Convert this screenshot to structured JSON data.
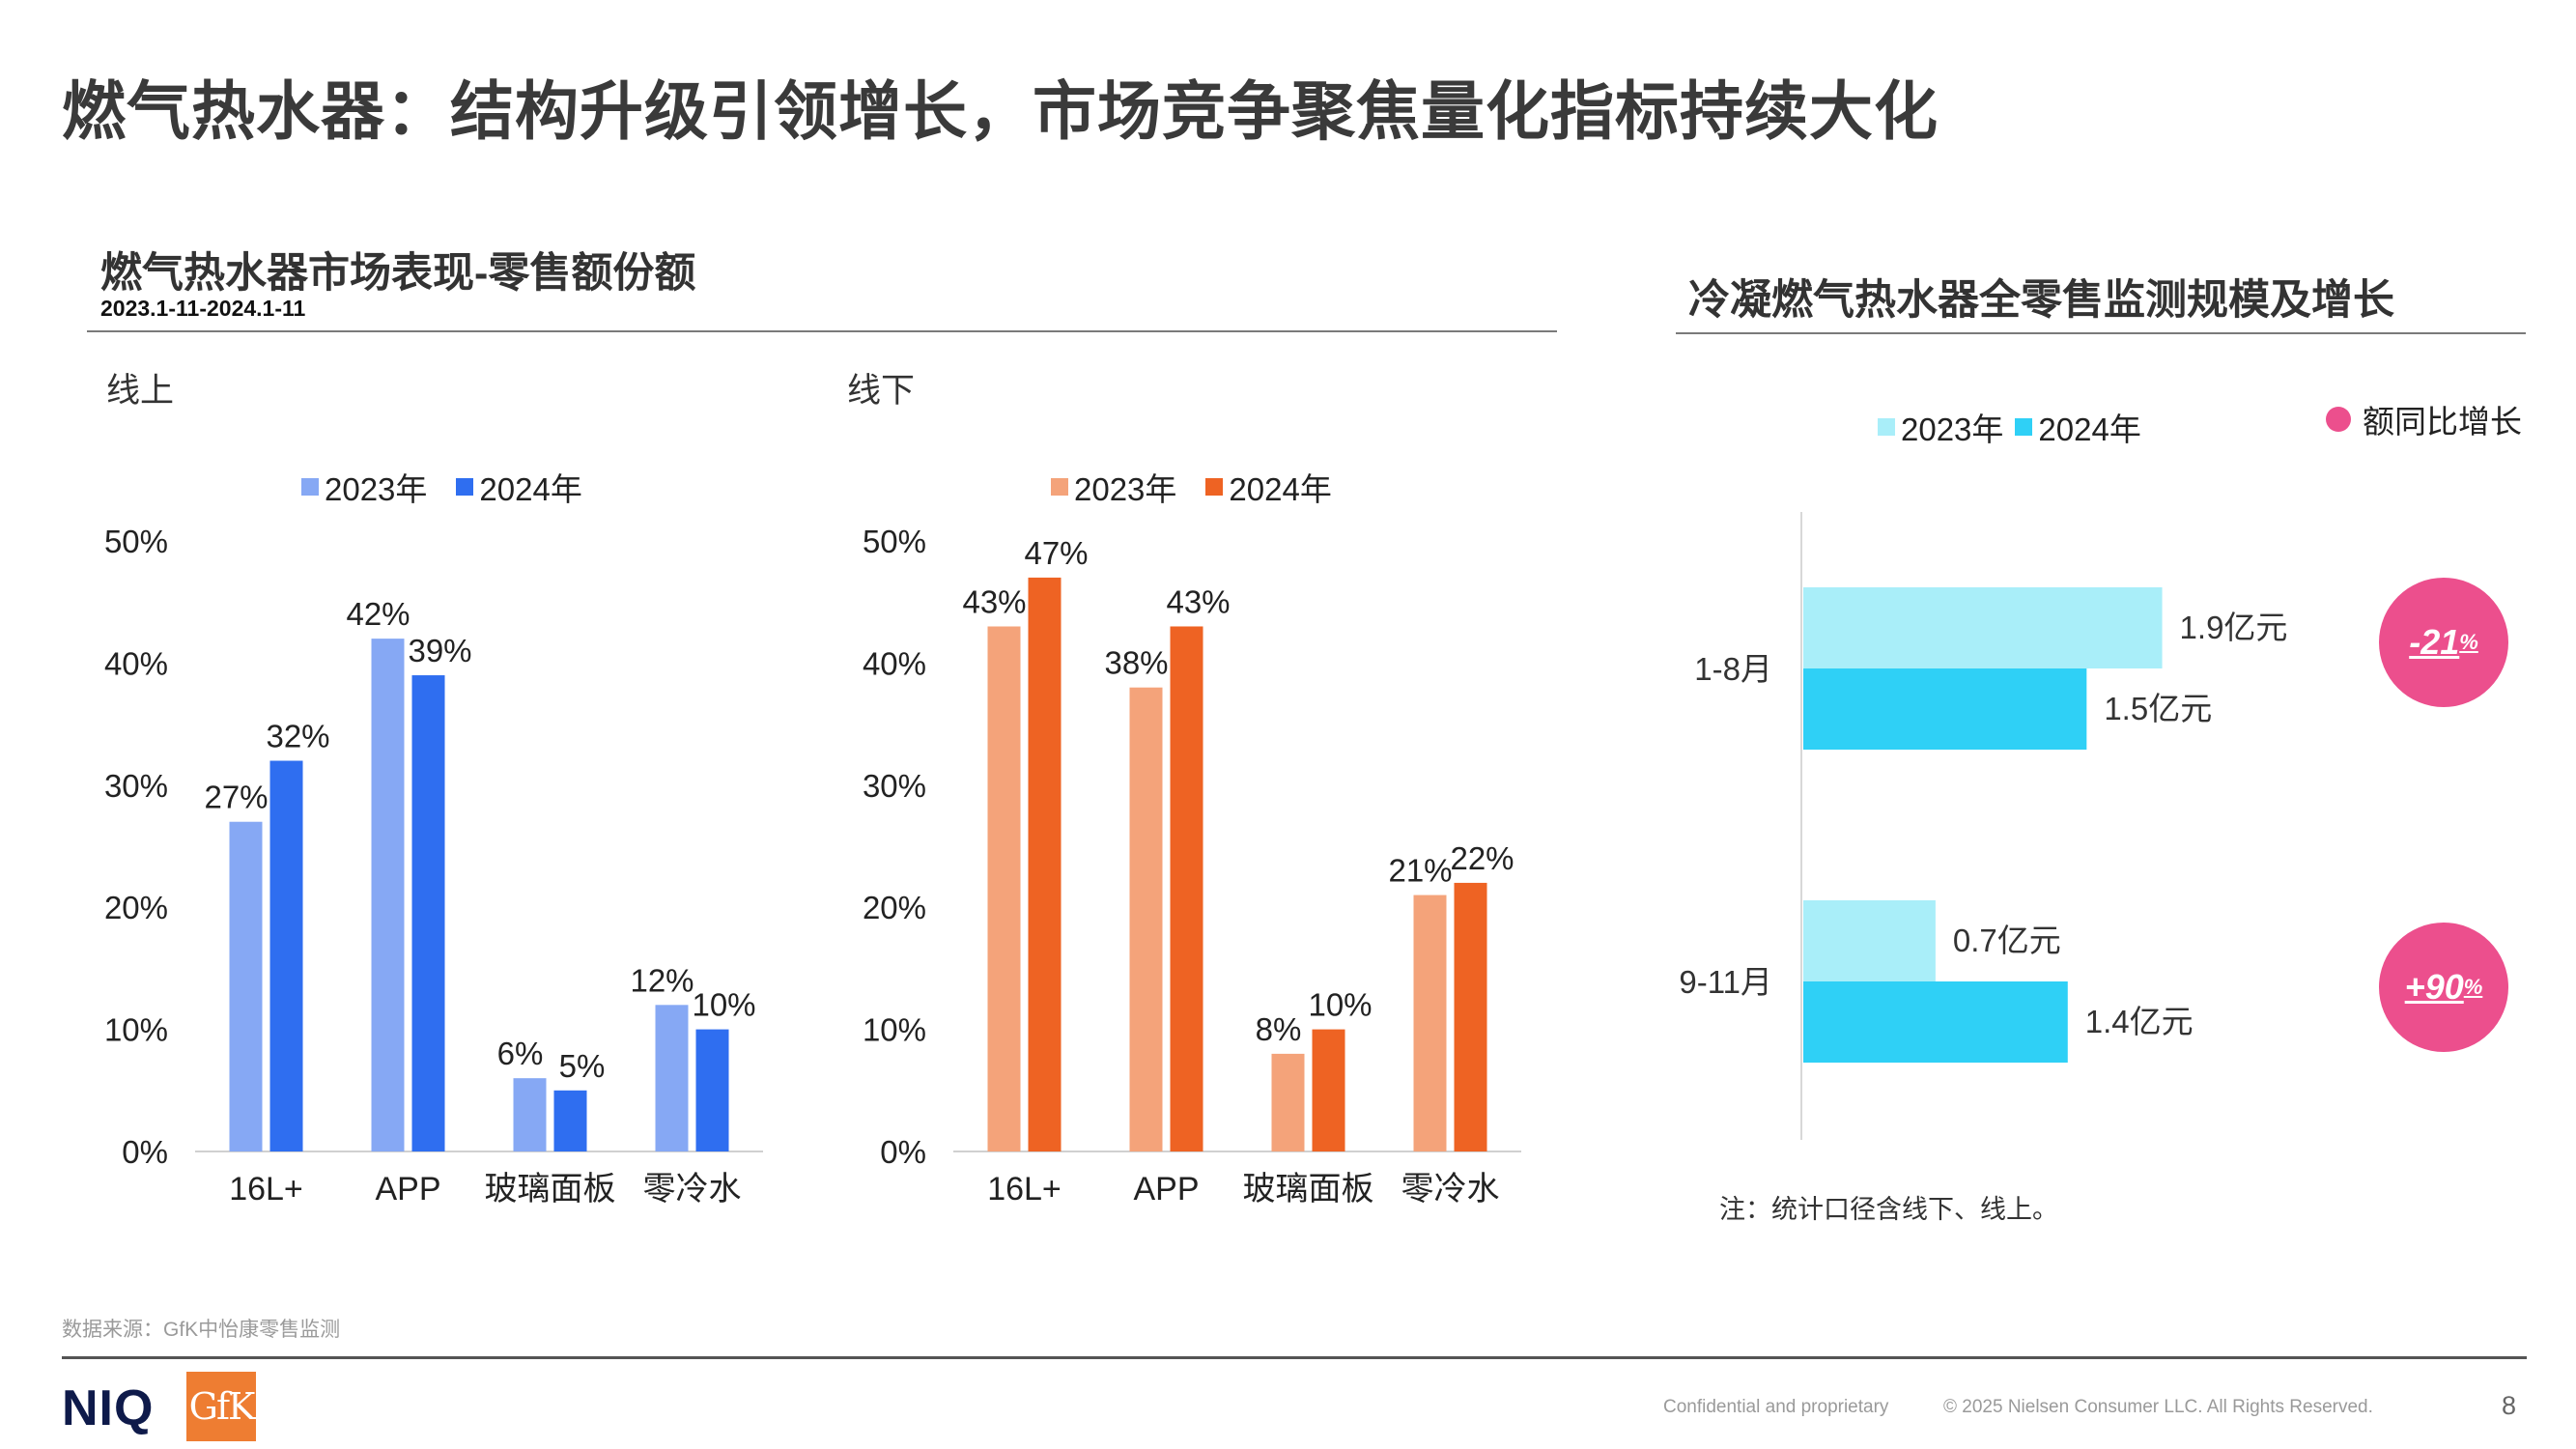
{
  "page": {
    "title": "燃气热水器：结构升级引领增长，市场竞争聚焦量化指标持续大化",
    "source": "数据来源：GfK中怡康零售监测",
    "footer_confidential": "Confidential and proprietary",
    "footer_copyright": "© 2025 Nielsen Consumer LLC. All Rights Reserved.",
    "page_number": "8",
    "logo_niq": "NIQ",
    "logo_gfk": "GfK"
  },
  "left_section": {
    "title": "燃气热水器市场表现-零售额份额",
    "subtitle": "2023.1-11-2024.1-11",
    "online_label": "线上",
    "offline_label": "线下"
  },
  "right_section": {
    "title": "冷凝燃气热水器全零售监测规模及增长",
    "growth_legend": "额同比增长",
    "note": "注：统计口径含线下、线上。",
    "growth_badges": [
      {
        "value": "-21",
        "unit": "%"
      },
      {
        "value": "+90",
        "unit": "%"
      }
    ]
  },
  "colors": {
    "online_2023": "#86a8f4",
    "online_2024": "#2f6ef0",
    "offline_2023": "#f4a37a",
    "offline_2024": "#ee6323",
    "condensing_2023": "#a9eef9",
    "condensing_2024": "#2fd0f6",
    "growth": "#ec4f8d"
  },
  "chart_data": [
    {
      "type": "bar",
      "title": "线上",
      "categories": [
        "16L+",
        "APP",
        "玻璃面板",
        "零冷水"
      ],
      "series": [
        {
          "name": "2023年",
          "values": [
            27,
            42,
            6,
            12
          ],
          "labels": [
            "27%",
            "42%",
            "6%",
            "12%"
          ]
        },
        {
          "name": "2024年",
          "values": [
            32,
            39,
            5,
            10
          ],
          "labels": [
            "32%",
            "39%",
            "5%",
            "10%"
          ]
        }
      ],
      "yticks": [
        "0%",
        "10%",
        "20%",
        "30%",
        "40%",
        "50%"
      ],
      "ylim": [
        0,
        50
      ],
      "legend": "top"
    },
    {
      "type": "bar",
      "title": "线下",
      "categories": [
        "16L+",
        "APP",
        "玻璃面板",
        "零冷水"
      ],
      "series": [
        {
          "name": "2023年",
          "values": [
            43,
            38,
            8,
            21
          ],
          "labels": [
            "43%",
            "38%",
            "8%",
            "21%"
          ]
        },
        {
          "name": "2024年",
          "values": [
            47,
            43,
            10,
            22
          ],
          "labels": [
            "47%",
            "43%",
            "10%",
            "22%"
          ]
        }
      ],
      "yticks": [
        "0%",
        "10%",
        "20%",
        "30%",
        "40%",
        "50%"
      ],
      "ylim": [
        0,
        50
      ],
      "legend": "top"
    },
    {
      "type": "bar",
      "orientation": "horizontal",
      "title": "冷凝燃气热水器全零售监测规模及增长",
      "categories": [
        "1-8月",
        "9-11月"
      ],
      "series": [
        {
          "name": "2023年",
          "values": [
            1.9,
            0.7
          ],
          "labels": [
            "1.9亿元",
            "0.7亿元"
          ]
        },
        {
          "name": "2024年",
          "values": [
            1.5,
            1.4
          ],
          "labels": [
            "1.5亿元",
            "1.4亿元"
          ]
        }
      ],
      "xlim": [
        0,
        2.5
      ],
      "legend": "top"
    }
  ]
}
